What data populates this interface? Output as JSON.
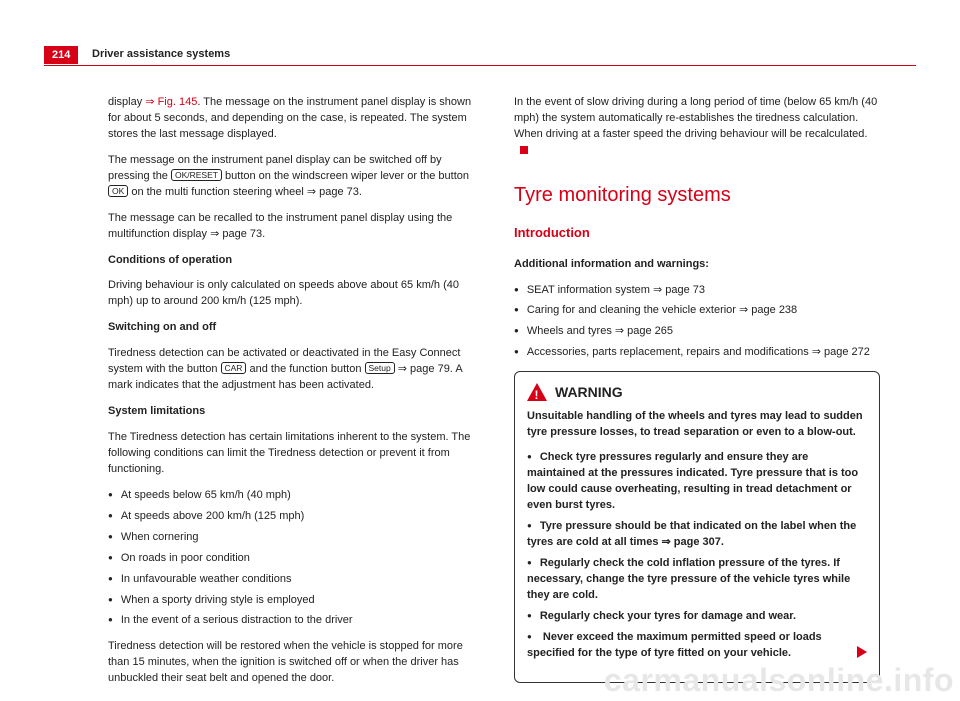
{
  "header": {
    "page_number": "214",
    "title": "Driver assistance systems"
  },
  "left": {
    "p1_a": "display ",
    "p1_link": "⇒ Fig. 145",
    "p1_b": ". The message on the instrument panel display is shown for about 5 seconds, and depending on the case, is repeated. The system stores the last message displayed.",
    "p2_a": "The message on the instrument panel display can be switched off by pressing the ",
    "p2_kbd1": "OK/RESET",
    "p2_b": " button on the windscreen wiper lever or the button ",
    "p2_kbd2": "OK",
    "p2_c": " on the multi function steering wheel ⇒ page 73.",
    "p3": "The message can be recalled to the instrument panel display using the multifunction display ⇒ page 73.",
    "h_cond": "Conditions of operation",
    "p_cond": "Driving behaviour is only calculated on speeds above about 65 km/h (40 mph) up to around 200 km/h (125 mph).",
    "h_switch": "Switching on and off",
    "p_switch_a": "Tiredness detection can be activated or deactivated in the Easy Connect system with the button ",
    "p_switch_kbd1": "CAR",
    "p_switch_b": " and the function button ",
    "p_switch_kbd2": "Setup",
    "p_switch_c": " ⇒ page 79. A mark indicates that the adjustment has been activated.",
    "h_lim": "System limitations",
    "p_lim": "The Tiredness detection has certain limitations inherent to the system. The following conditions can limit the Tiredness detection or prevent it from functioning.",
    "lim_items": [
      "At speeds below 65 km/h (40 mph)",
      "At speeds above 200 km/h (125 mph)",
      "When cornering",
      "On roads in poor condition",
      "In unfavourable weather conditions",
      "When a sporty driving style is employed",
      "In the event of a serious distraction to the driver"
    ],
    "p_restore": "Tiredness detection will be restored when the vehicle is stopped for more than 15 minutes, when the ignition is switched off or when the driver has unbuckled their seat belt and opened the door."
  },
  "right": {
    "p_slow": "In the event of slow driving during a long period of time (below 65 km/h (40 mph) the system automatically re-establishes the tiredness calculation. When driving at a faster speed the driving behaviour will be recalculated.",
    "h_topic": "Tyre monitoring systems",
    "h_sub": "Introduction",
    "h_add": "Additional information and warnings:",
    "add_items": [
      "SEAT information system ⇒ page 73",
      "Caring for and cleaning the vehicle exterior ⇒ page 238",
      "Wheels and tyres ⇒ page 265",
      "Accessories, parts replacement, repairs and modifications ⇒ page 272"
    ],
    "warn": {
      "title": "WARNING",
      "lead": "Unsuitable handling of the wheels and tyres may lead to sudden tyre pressure losses, to tread separation or even to a blow-out.",
      "items": [
        "Check tyre pressures regularly and ensure they are maintained at the pressures indicated. Tyre pressure that is too low could cause overheating, resulting in tread detachment or even burst tyres.",
        "Tyre pressure should be that indicated on the label when the tyres are cold at all times ⇒ page 307.",
        "Regularly check the cold inflation pressure of the tyres. If necessary, change the tyre pressure of the vehicle tyres while they are cold.",
        "Regularly check your tyres for damage and wear.",
        "Never exceed the maximum permitted speed or loads specified for the type of tyre fitted on your vehicle."
      ]
    }
  },
  "watermark": "carmanualsonline.info",
  "colors": {
    "accent": "#d60017"
  }
}
